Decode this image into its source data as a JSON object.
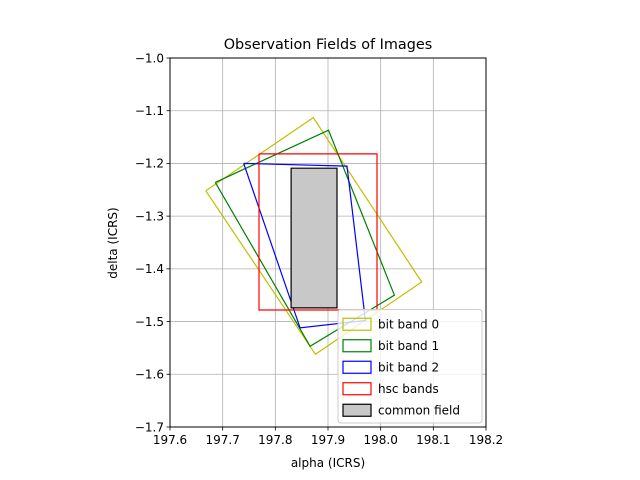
{
  "chart_data": {
    "type": "line",
    "title": "Observation Fields of Images",
    "xlabel": "alpha (ICRS)",
    "ylabel": "delta (ICRS)",
    "xlim": [
      197.6,
      198.2
    ],
    "ylim": [
      -1.7,
      -1.0
    ],
    "xticks": [
      197.6,
      197.7,
      197.8,
      197.9,
      198.0,
      198.1,
      198.2
    ],
    "xtick_labels": [
      "197.6",
      "197.7",
      "197.8",
      "197.9",
      "198.0",
      "198.1",
      "198.2"
    ],
    "yticks": [
      -1.7,
      -1.6,
      -1.5,
      -1.4,
      -1.3,
      -1.2,
      -1.1,
      -1.0
    ],
    "ytick_labels": [
      "−1.7",
      "−1.6",
      "−1.5",
      "−1.4",
      "−1.3",
      "−1.2",
      "−1.1",
      "−1.0"
    ],
    "grid": true,
    "legend_position": "bottom-right",
    "series": [
      {
        "name": "bit band 0",
        "color": "#bfbf00",
        "fill": "none",
        "points": [
          [
            197.668,
            -1.252
          ],
          [
            197.872,
            -1.113
          ],
          [
            198.078,
            -1.425
          ],
          [
            197.876,
            -1.562
          ],
          [
            197.668,
            -1.252
          ]
        ]
      },
      {
        "name": "bit band 1",
        "color": "#008000",
        "fill": "none",
        "points": [
          [
            197.686,
            -1.236
          ],
          [
            197.901,
            -1.137
          ],
          [
            198.026,
            -1.45
          ],
          [
            197.866,
            -1.547
          ],
          [
            197.686,
            -1.236
          ]
        ]
      },
      {
        "name": "bit band 2",
        "color": "#0000ff",
        "fill": "none",
        "points": [
          [
            197.74,
            -1.2
          ],
          [
            197.936,
            -1.205
          ],
          [
            197.971,
            -1.498
          ],
          [
            197.847,
            -1.512
          ],
          [
            197.74,
            -1.2
          ]
        ]
      },
      {
        "name": "hsc bands",
        "color": "#ff0000",
        "fill": "none",
        "points": [
          [
            197.769,
            -1.182
          ],
          [
            197.993,
            -1.182
          ],
          [
            197.993,
            -1.478
          ],
          [
            197.769,
            -1.478
          ],
          [
            197.769,
            -1.182
          ]
        ]
      },
      {
        "name": "common field",
        "color": "#000000",
        "fill": "#c8c8c8",
        "points": [
          [
            197.83,
            -1.209
          ],
          [
            197.917,
            -1.209
          ],
          [
            197.917,
            -1.474
          ],
          [
            197.83,
            -1.474
          ],
          [
            197.83,
            -1.209
          ]
        ]
      }
    ]
  }
}
